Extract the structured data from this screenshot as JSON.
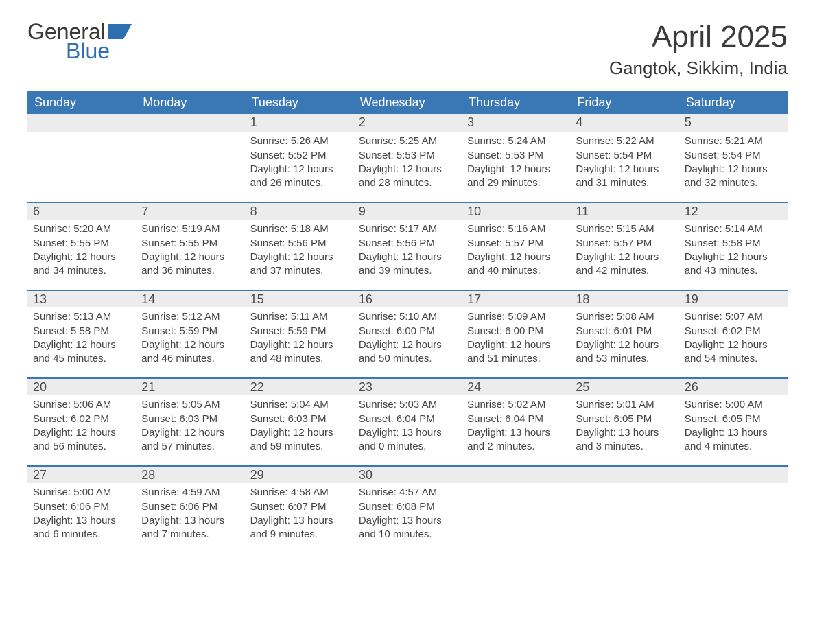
{
  "logo": {
    "word1": "General",
    "word2": "Blue",
    "word2_color": "#2f6fb0",
    "icon_color": "#2f6fb0"
  },
  "title": "April 2025",
  "location": "Gangtok, Sikkim, India",
  "colors": {
    "header_bg": "#3a77b5",
    "header_text": "#ffffff",
    "daynum_bg": "#ececec",
    "row_border": "#3a77b5",
    "body_text": "#444444",
    "page_bg": "#ffffff"
  },
  "typography": {
    "title_fontsize": 44,
    "location_fontsize": 26,
    "dayheader_fontsize": 18,
    "daynum_fontsize": 18,
    "body_fontsize": 15
  },
  "day_headers": [
    "Sunday",
    "Monday",
    "Tuesday",
    "Wednesday",
    "Thursday",
    "Friday",
    "Saturday"
  ],
  "weeks": [
    [
      null,
      null,
      {
        "n": "1",
        "sunrise": "5:26 AM",
        "sunset": "5:52 PM",
        "daylight": "12 hours and 26 minutes."
      },
      {
        "n": "2",
        "sunrise": "5:25 AM",
        "sunset": "5:53 PM",
        "daylight": "12 hours and 28 minutes."
      },
      {
        "n": "3",
        "sunrise": "5:24 AM",
        "sunset": "5:53 PM",
        "daylight": "12 hours and 29 minutes."
      },
      {
        "n": "4",
        "sunrise": "5:22 AM",
        "sunset": "5:54 PM",
        "daylight": "12 hours and 31 minutes."
      },
      {
        "n": "5",
        "sunrise": "5:21 AM",
        "sunset": "5:54 PM",
        "daylight": "12 hours and 32 minutes."
      }
    ],
    [
      {
        "n": "6",
        "sunrise": "5:20 AM",
        "sunset": "5:55 PM",
        "daylight": "12 hours and 34 minutes."
      },
      {
        "n": "7",
        "sunrise": "5:19 AM",
        "sunset": "5:55 PM",
        "daylight": "12 hours and 36 minutes."
      },
      {
        "n": "8",
        "sunrise": "5:18 AM",
        "sunset": "5:56 PM",
        "daylight": "12 hours and 37 minutes."
      },
      {
        "n": "9",
        "sunrise": "5:17 AM",
        "sunset": "5:56 PM",
        "daylight": "12 hours and 39 minutes."
      },
      {
        "n": "10",
        "sunrise": "5:16 AM",
        "sunset": "5:57 PM",
        "daylight": "12 hours and 40 minutes."
      },
      {
        "n": "11",
        "sunrise": "5:15 AM",
        "sunset": "5:57 PM",
        "daylight": "12 hours and 42 minutes."
      },
      {
        "n": "12",
        "sunrise": "5:14 AM",
        "sunset": "5:58 PM",
        "daylight": "12 hours and 43 minutes."
      }
    ],
    [
      {
        "n": "13",
        "sunrise": "5:13 AM",
        "sunset": "5:58 PM",
        "daylight": "12 hours and 45 minutes."
      },
      {
        "n": "14",
        "sunrise": "5:12 AM",
        "sunset": "5:59 PM",
        "daylight": "12 hours and 46 minutes."
      },
      {
        "n": "15",
        "sunrise": "5:11 AM",
        "sunset": "5:59 PM",
        "daylight": "12 hours and 48 minutes."
      },
      {
        "n": "16",
        "sunrise": "5:10 AM",
        "sunset": "6:00 PM",
        "daylight": "12 hours and 50 minutes."
      },
      {
        "n": "17",
        "sunrise": "5:09 AM",
        "sunset": "6:00 PM",
        "daylight": "12 hours and 51 minutes."
      },
      {
        "n": "18",
        "sunrise": "5:08 AM",
        "sunset": "6:01 PM",
        "daylight": "12 hours and 53 minutes."
      },
      {
        "n": "19",
        "sunrise": "5:07 AM",
        "sunset": "6:02 PM",
        "daylight": "12 hours and 54 minutes."
      }
    ],
    [
      {
        "n": "20",
        "sunrise": "5:06 AM",
        "sunset": "6:02 PM",
        "daylight": "12 hours and 56 minutes."
      },
      {
        "n": "21",
        "sunrise": "5:05 AM",
        "sunset": "6:03 PM",
        "daylight": "12 hours and 57 minutes."
      },
      {
        "n": "22",
        "sunrise": "5:04 AM",
        "sunset": "6:03 PM",
        "daylight": "12 hours and 59 minutes."
      },
      {
        "n": "23",
        "sunrise": "5:03 AM",
        "sunset": "6:04 PM",
        "daylight": "13 hours and 0 minutes."
      },
      {
        "n": "24",
        "sunrise": "5:02 AM",
        "sunset": "6:04 PM",
        "daylight": "13 hours and 2 minutes."
      },
      {
        "n": "25",
        "sunrise": "5:01 AM",
        "sunset": "6:05 PM",
        "daylight": "13 hours and 3 minutes."
      },
      {
        "n": "26",
        "sunrise": "5:00 AM",
        "sunset": "6:05 PM",
        "daylight": "13 hours and 4 minutes."
      }
    ],
    [
      {
        "n": "27",
        "sunrise": "5:00 AM",
        "sunset": "6:06 PM",
        "daylight": "13 hours and 6 minutes."
      },
      {
        "n": "28",
        "sunrise": "4:59 AM",
        "sunset": "6:06 PM",
        "daylight": "13 hours and 7 minutes."
      },
      {
        "n": "29",
        "sunrise": "4:58 AM",
        "sunset": "6:07 PM",
        "daylight": "13 hours and 9 minutes."
      },
      {
        "n": "30",
        "sunrise": "4:57 AM",
        "sunset": "6:08 PM",
        "daylight": "13 hours and 10 minutes."
      },
      null,
      null,
      null
    ]
  ],
  "labels": {
    "sunrise": "Sunrise:",
    "sunset": "Sunset:",
    "daylight": "Daylight:"
  }
}
